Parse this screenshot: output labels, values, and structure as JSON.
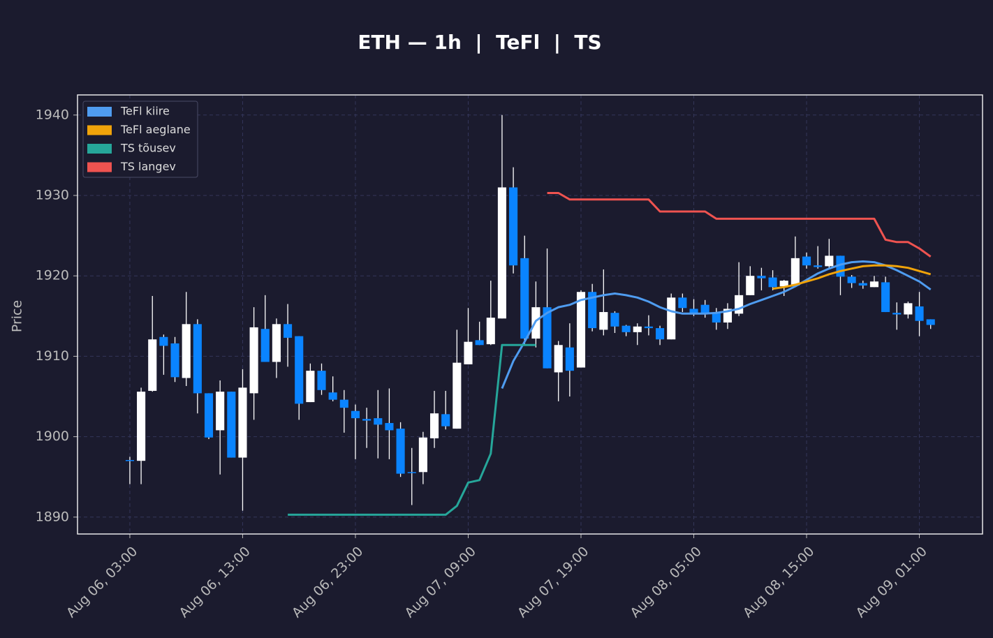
{
  "chart_data": {
    "type": "candlestick",
    "title": "ETH — 1h  |  TeFl  |  TS",
    "ylabel": "Price",
    "x": [
      "Aug 06, 03:00",
      "Aug 06, 04:00",
      "Aug 06, 05:00",
      "Aug 06, 06:00",
      "Aug 06, 07:00",
      "Aug 06, 08:00",
      "Aug 06, 09:00",
      "Aug 06, 10:00",
      "Aug 06, 11:00",
      "Aug 06, 12:00",
      "Aug 06, 13:00",
      "Aug 06, 14:00",
      "Aug 06, 15:00",
      "Aug 06, 16:00",
      "Aug 06, 17:00",
      "Aug 06, 18:00",
      "Aug 06, 19:00",
      "Aug 06, 20:00",
      "Aug 06, 21:00",
      "Aug 06, 22:00",
      "Aug 06, 23:00",
      "Aug 07, 00:00",
      "Aug 07, 01:00",
      "Aug 07, 02:00",
      "Aug 07, 03:00",
      "Aug 07, 04:00",
      "Aug 07, 05:00",
      "Aug 07, 06:00",
      "Aug 07, 07:00",
      "Aug 07, 08:00",
      "Aug 07, 09:00",
      "Aug 07, 10:00",
      "Aug 07, 11:00",
      "Aug 07, 12:00",
      "Aug 07, 13:00",
      "Aug 07, 14:00",
      "Aug 07, 15:00",
      "Aug 07, 16:00",
      "Aug 07, 17:00",
      "Aug 07, 18:00",
      "Aug 07, 19:00",
      "Aug 07, 20:00",
      "Aug 07, 21:00",
      "Aug 07, 22:00",
      "Aug 07, 23:00",
      "Aug 08, 00:00",
      "Aug 08, 01:00",
      "Aug 08, 02:00",
      "Aug 08, 03:00",
      "Aug 08, 04:00",
      "Aug 08, 05:00",
      "Aug 08, 06:00",
      "Aug 08, 07:00",
      "Aug 08, 08:00",
      "Aug 08, 09:00",
      "Aug 08, 10:00",
      "Aug 08, 11:00",
      "Aug 08, 12:00",
      "Aug 08, 13:00",
      "Aug 08, 14:00",
      "Aug 08, 15:00",
      "Aug 08, 16:00",
      "Aug 08, 17:00",
      "Aug 08, 18:00",
      "Aug 08, 19:00",
      "Aug 08, 20:00",
      "Aug 08, 21:00",
      "Aug 08, 22:00",
      "Aug 08, 23:00",
      "Aug 09, 00:00",
      "Aug 09, 01:00",
      "Aug 09, 02:00"
    ],
    "open": [
      1897.1,
      1897.0,
      1905.7,
      1912.4,
      1911.6,
      1907.3,
      1914.0,
      1905.4,
      1900.8,
      1905.6,
      1897.4,
      1905.4,
      1913.4,
      1909.3,
      1914.0,
      1912.5,
      1904.3,
      1908.2,
      1905.5,
      1904.6,
      1903.2,
      1902.2,
      1902.3,
      1901.7,
      1901.0,
      1895.6,
      1895.6,
      1899.8,
      1902.8,
      1901.0,
      1909.0,
      1912.0,
      1911.5,
      1914.7,
      1931.0,
      1922.2,
      1912.2,
      1916.1,
      1908.0,
      1911.1,
      1908.6,
      1918.0,
      1913.3,
      1915.4,
      1913.8,
      1913.0,
      1913.7,
      1913.5,
      1912.1,
      1917.3,
      1915.9,
      1916.4,
      1915.4,
      1914.2,
      1915.3,
      1917.6,
      1920.0,
      1919.8,
      1918.7,
      1918.8,
      1922.4,
      1921.3,
      1921.2,
      1922.5,
      1919.9,
      1919.1,
      1918.6,
      1919.2,
      1915.4,
      1915.2,
      1916.2,
      1914.6
    ],
    "high": [
      1897.5,
      1906.1,
      1917.5,
      1912.7,
      1912.4,
      1918.0,
      1914.6,
      1905.4,
      1907.0,
      1905.6,
      1908.4,
      1916.1,
      1917.6,
      1914.7,
      1916.5,
      1912.5,
      1909.1,
      1909.1,
      1907.5,
      1905.8,
      1904.0,
      1903.6,
      1905.8,
      1906.0,
      1901.8,
      1898.6,
      1900.6,
      1905.7,
      1905.7,
      1913.3,
      1916.0,
      1914.3,
      1919.4,
      1940.0,
      1933.5,
      1925.0,
      1919.3,
      1923.4,
      1911.9,
      1914.1,
      1918.2,
      1919.0,
      1920.8,
      1915.6,
      1913.9,
      1914.1,
      1915.1,
      1913.8,
      1917.8,
      1917.8,
      1917.1,
      1917.0,
      1916.0,
      1916.6,
      1921.7,
      1921.2,
      1921.0,
      1920.7,
      1919.5,
      1924.9,
      1922.9,
      1923.7,
      1924.6,
      1922.5,
      1920.1,
      1919.4,
      1920.0,
      1919.9,
      1916.7,
      1916.8,
      1918.0,
      1914.6
    ],
    "low": [
      1894.1,
      1894.1,
      1905.6,
      1907.7,
      1906.8,
      1906.3,
      1902.9,
      1899.7,
      1895.3,
      1897.4,
      1890.8,
      1902.1,
      1909.3,
      1907.3,
      1908.7,
      1902.1,
      1904.3,
      1905.2,
      1904.4,
      1900.5,
      1897.2,
      1898.6,
      1897.3,
      1897.2,
      1895.0,
      1891.5,
      1894.1,
      1898.6,
      1900.9,
      1901.0,
      1909.0,
      1911.4,
      1911.4,
      1914.7,
      1920.3,
      1911.4,
      1911.1,
      1908.5,
      1904.4,
      1905.0,
      1908.6,
      1913.1,
      1912.6,
      1912.9,
      1912.5,
      1911.4,
      1912.6,
      1911.4,
      1912.1,
      1915.5,
      1915.0,
      1914.8,
      1913.3,
      1913.4,
      1915.0,
      1917.6,
      1918.2,
      1918.2,
      1917.5,
      1918.8,
      1920.9,
      1920.9,
      1920.8,
      1917.6,
      1918.5,
      1918.4,
      1918.6,
      1915.5,
      1913.3,
      1914.7,
      1912.5,
      1913.4
    ],
    "close": [
      1897.0,
      1905.6,
      1912.1,
      1911.3,
      1907.4,
      1914.0,
      1905.4,
      1899.9,
      1905.6,
      1897.4,
      1906.1,
      1913.6,
      1909.3,
      1914.0,
      1912.3,
      1904.1,
      1908.2,
      1905.8,
      1904.6,
      1903.6,
      1902.3,
      1902.0,
      1901.5,
      1900.8,
      1895.4,
      1895.5,
      1899.9,
      1902.9,
      1901.3,
      1909.2,
      1911.8,
      1911.4,
      1914.8,
      1931.0,
      1921.3,
      1912.2,
      1916.1,
      1908.5,
      1911.4,
      1908.2,
      1918.0,
      1913.5,
      1915.5,
      1913.7,
      1913.0,
      1913.7,
      1913.5,
      1912.1,
      1917.3,
      1916.0,
      1915.3,
      1915.4,
      1914.2,
      1915.9,
      1917.6,
      1920.0,
      1919.7,
      1918.6,
      1919.4,
      1922.2,
      1921.3,
      1921.1,
      1922.5,
      1919.9,
      1919.1,
      1918.8,
      1919.3,
      1915.5,
      1915.2,
      1916.6,
      1914.4,
      1913.9
    ],
    "up_color": "#ffffff",
    "down_color": "#0a84ff",
    "wick_color": "#ffffff",
    "series": [
      {
        "name": "TeFl kiire",
        "color": "#4f9cf0",
        "values": [
          null,
          null,
          null,
          null,
          null,
          null,
          null,
          null,
          null,
          null,
          null,
          null,
          null,
          null,
          null,
          null,
          null,
          null,
          null,
          null,
          null,
          null,
          null,
          null,
          null,
          null,
          null,
          null,
          null,
          null,
          null,
          null,
          null,
          1906.0,
          1909.4,
          1911.8,
          1914.4,
          1915.4,
          1916.1,
          1916.4,
          1917.0,
          1917.3,
          1917.6,
          1917.8,
          1917.6,
          1917.3,
          1916.8,
          1916.1,
          1915.6,
          1915.3,
          1915.3,
          1915.3,
          1915.4,
          1915.6,
          1915.9,
          1916.5,
          1917.0,
          1917.5,
          1918.0,
          1918.7,
          1919.5,
          1920.3,
          1920.9,
          1921.4,
          1921.7,
          1921.8,
          1921.7,
          1921.3,
          1920.7,
          1920.0,
          1919.3,
          1918.3
        ]
      },
      {
        "name": "TeFl aeglane",
        "color": "#f0a30a",
        "values": [
          null,
          null,
          null,
          null,
          null,
          null,
          null,
          null,
          null,
          null,
          null,
          null,
          null,
          null,
          null,
          null,
          null,
          null,
          null,
          null,
          null,
          null,
          null,
          null,
          null,
          null,
          null,
          null,
          null,
          null,
          null,
          null,
          null,
          null,
          null,
          null,
          null,
          null,
          null,
          null,
          null,
          null,
          null,
          null,
          null,
          null,
          null,
          null,
          null,
          null,
          null,
          null,
          null,
          null,
          null,
          null,
          null,
          1918.4,
          1918.6,
          1918.9,
          1919.3,
          1919.7,
          1920.2,
          1920.6,
          1920.9,
          1921.2,
          1921.3,
          1921.3,
          1921.2,
          1921.0,
          1920.6,
          1920.2
        ]
      },
      {
        "name": "TS tõusev",
        "color": "#26a69a",
        "values": [
          null,
          null,
          null,
          null,
          null,
          null,
          null,
          null,
          null,
          null,
          null,
          null,
          null,
          null,
          1890.3,
          1890.3,
          1890.3,
          1890.3,
          1890.3,
          1890.3,
          1890.3,
          1890.3,
          1890.3,
          1890.3,
          1890.3,
          1890.3,
          1890.3,
          1890.3,
          1890.3,
          1891.4,
          1894.3,
          1894.6,
          1897.9,
          1911.4,
          1911.4,
          1911.4,
          1911.4,
          null,
          null,
          null,
          null,
          null,
          null,
          null,
          null,
          null,
          null,
          null,
          null,
          null,
          null,
          null,
          null,
          null,
          null,
          null,
          null,
          null,
          null,
          null,
          null,
          null,
          null,
          null,
          null,
          null,
          null,
          null,
          null,
          null,
          null,
          null
        ]
      },
      {
        "name": "TS langev",
        "color": "#ef5350",
        "values": [
          null,
          null,
          null,
          null,
          null,
          null,
          null,
          null,
          null,
          null,
          null,
          null,
          null,
          null,
          null,
          null,
          null,
          null,
          null,
          null,
          null,
          null,
          null,
          null,
          null,
          null,
          null,
          null,
          null,
          null,
          null,
          null,
          null,
          null,
          null,
          null,
          null,
          1930.3,
          1930.3,
          1929.5,
          1929.5,
          1929.5,
          1929.5,
          1929.5,
          1929.5,
          1929.5,
          1929.5,
          1928.0,
          1928.0,
          1928.0,
          1928.0,
          1928.0,
          1927.1,
          1927.1,
          1927.1,
          1927.1,
          1927.1,
          1927.1,
          1927.1,
          1927.1,
          1927.1,
          1927.1,
          1927.1,
          1927.1,
          1927.1,
          1927.1,
          1927.1,
          1924.5,
          1924.2,
          1924.2,
          1923.4,
          1922.4
        ]
      }
    ],
    "xlim": [
      -4.64,
      75.6
    ],
    "xticks": [
      {
        "value": 0,
        "label": "Aug 06, 03:00"
      },
      {
        "value": 10,
        "label": "Aug 06, 13:00"
      },
      {
        "value": 20,
        "label": "Aug 06, 23:00"
      },
      {
        "value": 30,
        "label": "Aug 07, 09:00"
      },
      {
        "value": 40,
        "label": "Aug 07, 19:00"
      },
      {
        "value": 50,
        "label": "Aug 08, 05:00"
      },
      {
        "value": 60,
        "label": "Aug 08, 15:00"
      },
      {
        "value": 70,
        "label": "Aug 09, 01:00"
      }
    ],
    "ylim": [
      1887.9,
      1942.5
    ],
    "yticks": [
      1890,
      1900,
      1910,
      1920,
      1930,
      1940
    ],
    "grid": true,
    "legend": "upper left"
  }
}
